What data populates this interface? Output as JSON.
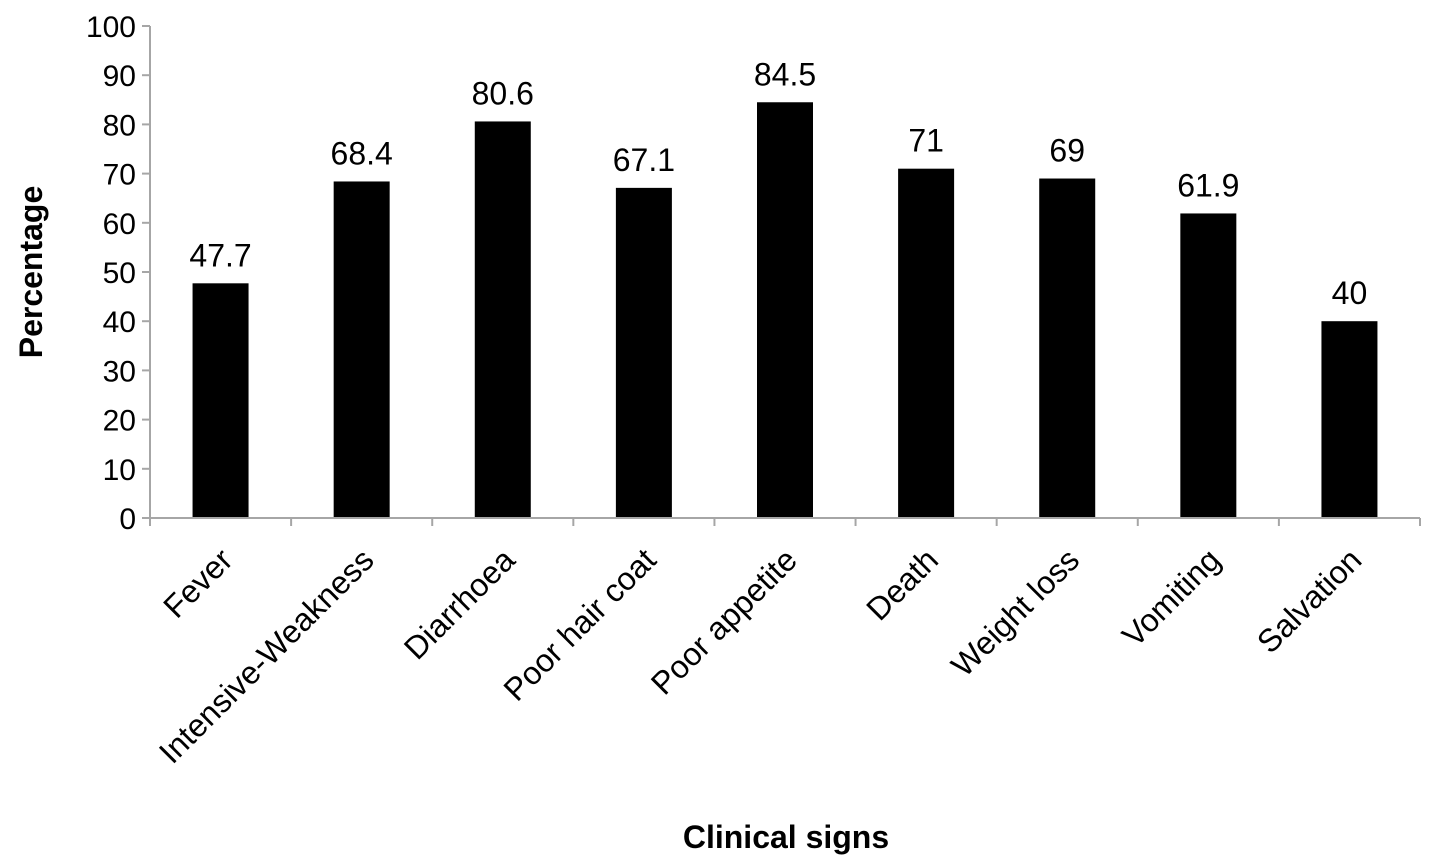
{
  "chart_data": {
    "type": "bar",
    "categories": [
      "Fever",
      "Intensive-Weakness",
      "Diarrhoea",
      "Poor hair coat",
      "Poor appetite",
      "Death",
      "Weight loss",
      "Vomiting",
      "Salvation"
    ],
    "values": [
      47.7,
      68.4,
      80.6,
      67.1,
      84.5,
      71,
      69,
      61.9,
      40
    ],
    "value_labels": [
      "47.7",
      "68.4",
      "80.6",
      "67.1",
      "84.5",
      "71",
      "69",
      "61.9",
      "40"
    ],
    "xlabel": "Clinical signs",
    "ylabel": "Percentage",
    "ylim": [
      0,
      100
    ],
    "yticks": [
      "0",
      "10",
      "20",
      "30",
      "40",
      "50",
      "60",
      "70",
      "80",
      "90",
      "100"
    ],
    "grid": false,
    "legend": "none",
    "bar_color": "#000000",
    "axis_color": "#a6a6a6"
  }
}
